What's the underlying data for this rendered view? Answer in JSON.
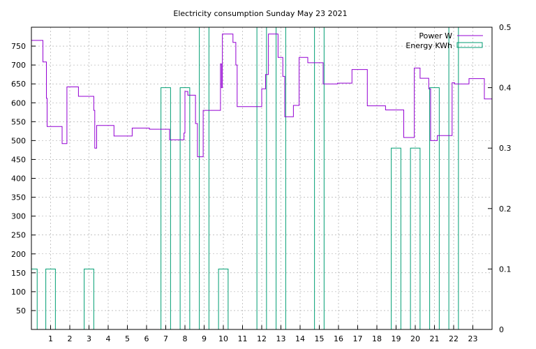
{
  "chart_data": {
    "type": "line",
    "title": "Electricity consumption Sunday May 23 2021",
    "x": {
      "range": [
        0,
        24
      ],
      "ticks": [
        1,
        2,
        3,
        4,
        5,
        6,
        7,
        8,
        9,
        10,
        11,
        12,
        13,
        14,
        15,
        16,
        17,
        18,
        19,
        20,
        21,
        22,
        23
      ]
    },
    "y_left": {
      "range": [
        0,
        800
      ],
      "ticks": [
        50,
        100,
        150,
        200,
        250,
        300,
        350,
        400,
        450,
        500,
        550,
        600,
        650,
        700,
        750
      ]
    },
    "y_right": {
      "range": [
        0,
        0.5
      ],
      "ticks": [
        "0",
        "0.1",
        "0.2",
        "0.3",
        "0.4",
        "0.5"
      ]
    },
    "grid": true,
    "legend_position": "top-right",
    "series": [
      {
        "name": "Power W",
        "axis": "left",
        "color": "#9400d3",
        "style": "step",
        "points": [
          [
            0.0,
            765
          ],
          [
            0.6,
            765
          ],
          [
            0.6,
            708
          ],
          [
            0.78,
            708
          ],
          [
            0.78,
            612
          ],
          [
            0.82,
            612
          ],
          [
            0.82,
            537
          ],
          [
            1.6,
            537
          ],
          [
            1.6,
            492
          ],
          [
            1.85,
            492
          ],
          [
            1.85,
            642
          ],
          [
            2.45,
            642
          ],
          [
            2.45,
            617
          ],
          [
            3.25,
            617
          ],
          [
            3.25,
            580
          ],
          [
            3.3,
            580
          ],
          [
            3.3,
            480
          ],
          [
            3.4,
            480
          ],
          [
            3.4,
            540
          ],
          [
            4.3,
            540
          ],
          [
            4.3,
            512
          ],
          [
            5.25,
            512
          ],
          [
            5.25,
            533
          ],
          [
            6.15,
            533
          ],
          [
            6.15,
            530
          ],
          [
            7.2,
            530
          ],
          [
            7.2,
            502
          ],
          [
            7.95,
            502
          ],
          [
            7.95,
            520
          ],
          [
            8.0,
            520
          ],
          [
            8.0,
            630
          ],
          [
            8.15,
            630
          ],
          [
            8.15,
            620
          ],
          [
            8.55,
            620
          ],
          [
            8.55,
            545
          ],
          [
            8.65,
            545
          ],
          [
            8.65,
            457
          ],
          [
            8.95,
            457
          ],
          [
            8.95,
            580
          ],
          [
            9.85,
            580
          ],
          [
            9.85,
            703
          ],
          [
            9.9,
            703
          ],
          [
            9.9,
            640
          ],
          [
            9.95,
            640
          ],
          [
            9.95,
            782
          ],
          [
            10.5,
            782
          ],
          [
            10.5,
            760
          ],
          [
            10.65,
            760
          ],
          [
            10.65,
            700
          ],
          [
            10.72,
            700
          ],
          [
            10.72,
            590
          ],
          [
            12.0,
            590
          ],
          [
            12.0,
            637
          ],
          [
            12.2,
            637
          ],
          [
            12.2,
            675
          ],
          [
            12.35,
            675
          ],
          [
            12.35,
            782
          ],
          [
            12.85,
            782
          ],
          [
            12.85,
            720
          ],
          [
            13.1,
            720
          ],
          [
            13.1,
            670
          ],
          [
            13.2,
            670
          ],
          [
            13.2,
            563
          ],
          [
            13.65,
            563
          ],
          [
            13.65,
            593
          ],
          [
            13.95,
            593
          ],
          [
            13.95,
            720
          ],
          [
            14.4,
            720
          ],
          [
            14.4,
            706
          ],
          [
            15.2,
            706
          ],
          [
            15.2,
            650
          ],
          [
            15.95,
            650
          ],
          [
            15.95,
            652
          ],
          [
            16.7,
            652
          ],
          [
            16.7,
            688
          ],
          [
            17.5,
            688
          ],
          [
            17.5,
            592
          ],
          [
            18.45,
            592
          ],
          [
            18.45,
            581
          ],
          [
            19.4,
            581
          ],
          [
            19.4,
            508
          ],
          [
            19.95,
            508
          ],
          [
            19.95,
            692
          ],
          [
            20.25,
            692
          ],
          [
            20.25,
            665
          ],
          [
            20.7,
            665
          ],
          [
            20.7,
            637
          ],
          [
            20.8,
            637
          ],
          [
            20.8,
            500
          ],
          [
            21.15,
            500
          ],
          [
            21.15,
            513
          ],
          [
            21.92,
            513
          ],
          [
            21.92,
            653
          ],
          [
            22.05,
            653
          ],
          [
            22.05,
            650
          ],
          [
            22.8,
            650
          ],
          [
            22.8,
            664
          ],
          [
            23.6,
            664
          ],
          [
            23.6,
            610
          ],
          [
            24.0,
            610
          ]
        ]
      },
      {
        "name": "Energy KWh",
        "axis": "right",
        "color": "#009e73",
        "style": "boxes",
        "boxes": [
          [
            0.0,
            0.3,
            0.1
          ],
          [
            0.75,
            1.25,
            0.1
          ],
          [
            2.75,
            3.25,
            0.1
          ],
          [
            6.75,
            7.25,
            0.4
          ],
          [
            7.75,
            8.25,
            0.4
          ],
          [
            8.75,
            9.25,
            0.5
          ],
          [
            9.75,
            10.25,
            0.1
          ],
          [
            11.75,
            12.25,
            0.5
          ],
          [
            12.75,
            13.25,
            0.5
          ],
          [
            14.75,
            15.25,
            0.5
          ],
          [
            18.75,
            19.25,
            0.3
          ],
          [
            19.75,
            20.25,
            0.3
          ],
          [
            20.75,
            21.25,
            0.4
          ],
          [
            21.75,
            22.25,
            0.5
          ]
        ]
      }
    ]
  }
}
